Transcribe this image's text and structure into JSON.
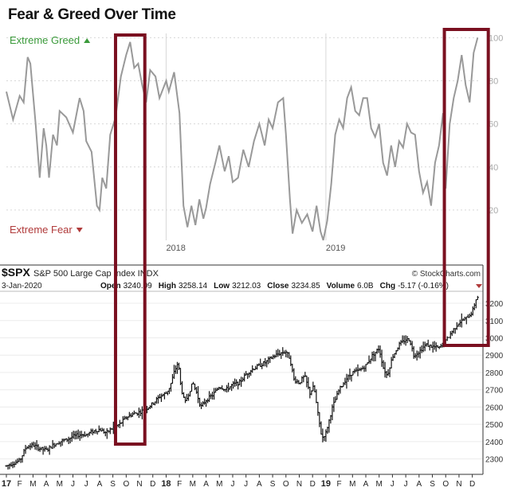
{
  "page_title": "Fear & Greed Over Time",
  "colors": {
    "greed": "#3a9a3a",
    "fear": "#b03a3a",
    "fg_line": "#999999",
    "price_bar": "#111111",
    "highlight_box": "#7a1020",
    "grid": "#d8d8d8"
  },
  "chart_data": [
    {
      "type": "line",
      "title": "Fear & Greed Over Time",
      "labels": {
        "top": "Extreme Greed",
        "top_icon": "triangle-up-icon",
        "bottom": "Extreme Fear",
        "bottom_icon": "triangle-down-icon"
      },
      "ylim": [
        0,
        102
      ],
      "y_ticks": [
        20,
        40,
        60,
        80,
        100
      ],
      "x_ticks": [
        {
          "t": 12,
          "label": "2018"
        },
        {
          "t": 24,
          "label": "2019"
        }
      ],
      "xlim": [
        0,
        35.5
      ],
      "grid": true,
      "series": [
        {
          "name": "Fear & Greed",
          "points": [
            [
              0,
              75
            ],
            [
              0.5,
              62
            ],
            [
              1,
              73
            ],
            [
              1.3,
              70
            ],
            [
              1.6,
              91
            ],
            [
              1.8,
              88
            ],
            [
              2.2,
              60
            ],
            [
              2.5,
              35
            ],
            [
              2.8,
              58
            ],
            [
              3,
              50
            ],
            [
              3.2,
              35
            ],
            [
              3.5,
              55
            ],
            [
              3.8,
              50
            ],
            [
              4,
              66
            ],
            [
              4.5,
              63
            ],
            [
              5,
              56
            ],
            [
              5.5,
              72
            ],
            [
              5.8,
              66
            ],
            [
              6,
              52
            ],
            [
              6.4,
              47
            ],
            [
              6.8,
              22
            ],
            [
              7,
              20
            ],
            [
              7.2,
              35
            ],
            [
              7.5,
              30
            ],
            [
              7.8,
              55
            ],
            [
              8.2,
              63
            ],
            [
              8.6,
              82
            ],
            [
              9,
              92
            ],
            [
              9.3,
              98
            ],
            [
              9.6,
              86
            ],
            [
              9.9,
              88
            ],
            [
              10.2,
              78
            ],
            [
              10.5,
              70
            ],
            [
              10.8,
              85
            ],
            [
              11.2,
              82
            ],
            [
              11.5,
              72
            ],
            [
              12,
              80
            ],
            [
              12.2,
              75
            ],
            [
              12.6,
              84
            ],
            [
              13,
              65
            ],
            [
              13.3,
              22
            ],
            [
              13.6,
              12
            ],
            [
              13.9,
              22
            ],
            [
              14.2,
              13
            ],
            [
              14.5,
              25
            ],
            [
              14.8,
              16
            ],
            [
              15,
              21
            ],
            [
              15.3,
              32
            ],
            [
              15.7,
              42
            ],
            [
              16,
              50
            ],
            [
              16.4,
              38
            ],
            [
              16.7,
              45
            ],
            [
              17,
              33
            ],
            [
              17.4,
              35
            ],
            [
              17.8,
              48
            ],
            [
              18.2,
              40
            ],
            [
              18.6,
              52
            ],
            [
              19,
              60
            ],
            [
              19.4,
              50
            ],
            [
              19.7,
              62
            ],
            [
              20,
              58
            ],
            [
              20.4,
              70
            ],
            [
              20.8,
              72
            ],
            [
              21,
              55
            ],
            [
              21.3,
              25
            ],
            [
              21.5,
              9
            ],
            [
              21.8,
              20
            ],
            [
              22.2,
              14
            ],
            [
              22.6,
              18
            ],
            [
              23,
              10
            ],
            [
              23.3,
              22
            ],
            [
              23.6,
              10
            ],
            [
              23.8,
              6
            ],
            [
              24.1,
              15
            ],
            [
              24.4,
              32
            ],
            [
              24.7,
              55
            ],
            [
              25,
              62
            ],
            [
              25.3,
              58
            ],
            [
              25.6,
              72
            ],
            [
              25.9,
              77
            ],
            [
              26.2,
              66
            ],
            [
              26.5,
              64
            ],
            [
              26.8,
              72
            ],
            [
              27.1,
              72
            ],
            [
              27.4,
              58
            ],
            [
              27.7,
              54
            ],
            [
              28,
              60
            ],
            [
              28.3,
              42
            ],
            [
              28.6,
              36
            ],
            [
              28.9,
              50
            ],
            [
              29.2,
              40
            ],
            [
              29.5,
              52
            ],
            [
              29.8,
              49
            ],
            [
              30.1,
              60
            ],
            [
              30.4,
              56
            ],
            [
              30.7,
              55
            ],
            [
              31,
              38
            ],
            [
              31.3,
              28
            ],
            [
              31.6,
              33
            ],
            [
              31.9,
              22
            ],
            [
              32.2,
              42
            ],
            [
              32.5,
              50
            ],
            [
              32.8,
              65
            ],
            [
              33,
              30
            ],
            [
              33.3,
              60
            ],
            [
              33.6,
              72
            ],
            [
              33.9,
              80
            ],
            [
              34.2,
              92
            ],
            [
              34.5,
              78
            ],
            [
              34.8,
              70
            ],
            [
              35.1,
              93
            ],
            [
              35.4,
              100
            ]
          ]
        }
      ],
      "highlights": [
        {
          "start": 8.2,
          "end": 10.4
        },
        {
          "start": 32.9,
          "end": 36.2
        }
      ]
    },
    {
      "type": "ohlc",
      "symbol": "$SPX",
      "name": "S&P 500 Large Cap Index  INDX",
      "source": "© StockCharts.com",
      "date": "3-Jan-2020",
      "stats": [
        {
          "k": "Open",
          "v": "3240.09"
        },
        {
          "k": "High",
          "v": "3258.14"
        },
        {
          "k": "Low",
          "v": "3212.03"
        },
        {
          "k": "Close",
          "v": "3234.85"
        },
        {
          "k": "Volume",
          "v": "6.0B"
        },
        {
          "k": "Chg",
          "v": "-5.17 (-0.16%)"
        }
      ],
      "ylim": [
        2220,
        3260
      ],
      "y_ticks": [
        2300,
        2400,
        2500,
        2600,
        2700,
        2800,
        2900,
        3000,
        3100,
        3200
      ],
      "x_month_ticks": [
        "17",
        "F",
        "M",
        "A",
        "M",
        "J",
        "J",
        "A",
        "S",
        "O",
        "N",
        "D",
        "18",
        "F",
        "M",
        "A",
        "M",
        "J",
        "J",
        "A",
        "S",
        "O",
        "N",
        "D",
        "19",
        "F",
        "M",
        "A",
        "M",
        "J",
        "J",
        "A",
        "S",
        "O",
        "N",
        "D"
      ],
      "price_path": [
        [
          0,
          2260
        ],
        [
          1,
          2290
        ],
        [
          1.5,
          2370
        ],
        [
          2,
          2380
        ],
        [
          2.5,
          2360
        ],
        [
          3,
          2350
        ],
        [
          3.5,
          2380
        ],
        [
          4,
          2400
        ],
        [
          4.5,
          2410
        ],
        [
          5,
          2430
        ],
        [
          5.5,
          2440
        ],
        [
          6,
          2440
        ],
        [
          6.5,
          2460
        ],
        [
          7,
          2470
        ],
        [
          7.5,
          2450
        ],
        [
          8,
          2480
        ],
        [
          8.5,
          2500
        ],
        [
          9,
          2540
        ],
        [
          9.5,
          2560
        ],
        [
          10,
          2570
        ],
        [
          10.5,
          2590
        ],
        [
          11,
          2620
        ],
        [
          11.5,
          2660
        ],
        [
          12,
          2680
        ],
        [
          12.3,
          2720
        ],
        [
          12.6,
          2800
        ],
        [
          12.9,
          2860
        ],
        [
          13.1,
          2720
        ],
        [
          13.4,
          2620
        ],
        [
          13.7,
          2680
        ],
        [
          14,
          2740
        ],
        [
          14.3,
          2680
        ],
        [
          14.6,
          2600
        ],
        [
          15,
          2640
        ],
        [
          15.5,
          2670
        ],
        [
          16,
          2720
        ],
        [
          16.5,
          2700
        ],
        [
          17,
          2730
        ],
        [
          17.5,
          2740
        ],
        [
          18,
          2790
        ],
        [
          18.5,
          2820
        ],
        [
          19,
          2840
        ],
        [
          19.5,
          2860
        ],
        [
          20,
          2890
        ],
        [
          20.5,
          2910
        ],
        [
          21,
          2920
        ],
        [
          21.3,
          2880
        ],
        [
          21.6,
          2760
        ],
        [
          22,
          2740
        ],
        [
          22.4,
          2780
        ],
        [
          22.8,
          2680
        ],
        [
          23.1,
          2720
        ],
        [
          23.4,
          2560
        ],
        [
          23.7,
          2420
        ],
        [
          24,
          2450
        ],
        [
          24.5,
          2600
        ],
        [
          25,
          2700
        ],
        [
          25.5,
          2760
        ],
        [
          26,
          2800
        ],
        [
          26.5,
          2810
        ],
        [
          27,
          2840
        ],
        [
          27.5,
          2900
        ],
        [
          28,
          2940
        ],
        [
          28.3,
          2830
        ],
        [
          28.6,
          2780
        ],
        [
          29,
          2890
        ],
        [
          29.5,
          2960
        ],
        [
          30,
          2990
        ],
        [
          30.3,
          2990
        ],
        [
          30.6,
          2900
        ],
        [
          31,
          2920
        ],
        [
          31.5,
          2960
        ],
        [
          32,
          2950
        ],
        [
          32.5,
          2940
        ],
        [
          33,
          2980
        ],
        [
          33.5,
          3040
        ],
        [
          34,
          3090
        ],
        [
          34.5,
          3110
        ],
        [
          35,
          3150
        ],
        [
          35.3,
          3230
        ],
        [
          35.5,
          3240
        ]
      ]
    }
  ]
}
